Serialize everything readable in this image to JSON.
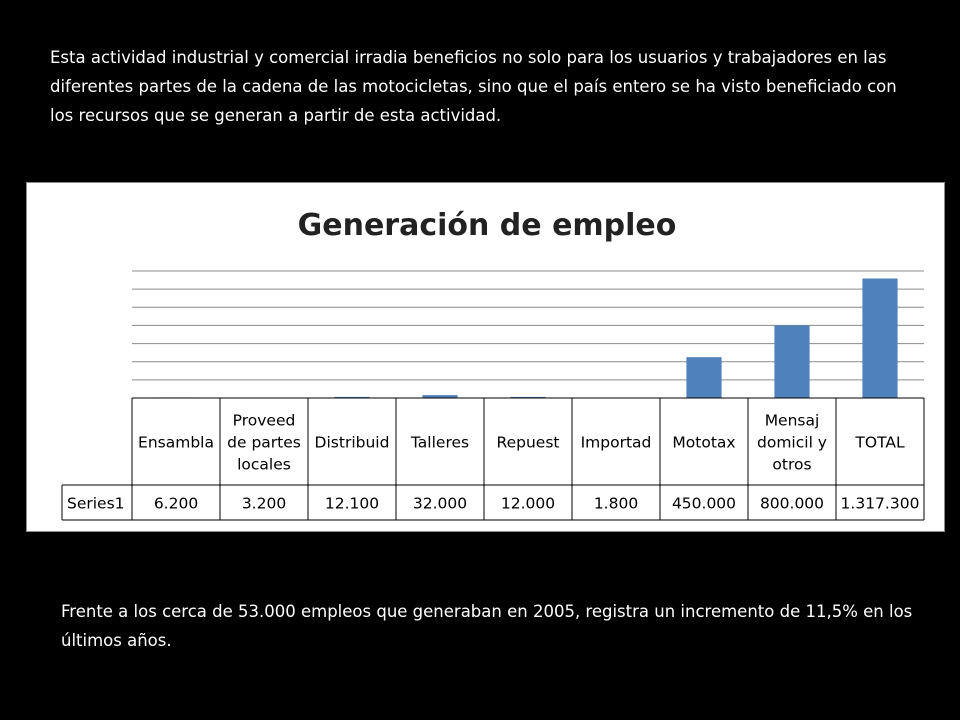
{
  "intro_text": "Esta actividad industrial y comercial irradia beneficios no solo para los usuarios y trabajadores en las diferentes partes de la cadena de las motocicletas, sino que el país entero se ha visto beneficiado con los recursos que se generan a partir de esta actividad.",
  "outro_text": "Frente a los cerca de 53.000 empleos que generaban en 2005, registra un incremento de 11,5% en los últimos años.",
  "chart_data": {
    "type": "bar",
    "title": "Generación de empleo",
    "categories": [
      "Ensambla",
      "Proveed de partes locales",
      "Distribuid",
      "Talleres",
      "Repuest",
      "Importad",
      "Mototax",
      "Mensaj domicil y otros",
      "TOTAL"
    ],
    "category_lines": [
      [
        "Ensambla"
      ],
      [
        "Proveed",
        "de partes",
        "locales"
      ],
      [
        "Distribuid"
      ],
      [
        "Talleres"
      ],
      [
        "Repuest"
      ],
      [
        "Importad"
      ],
      [
        "Mototax"
      ],
      [
        "Mensaj",
        "domicil y",
        "otros"
      ],
      [
        "TOTAL"
      ]
    ],
    "series": [
      {
        "name": "Series1",
        "values": [
          6200,
          3200,
          12100,
          32000,
          12000,
          1800,
          450000,
          800000,
          1317300
        ],
        "labels": [
          "6.200",
          "3.200",
          "12.100",
          "32.000",
          "12.000",
          "1.800",
          "450.000",
          "800.000",
          "1.317.300"
        ],
        "color": "#4f81bd"
      }
    ],
    "ylim": [
      0,
      1400000
    ],
    "grid": true,
    "legend": "data-table",
    "xlabel": "",
    "ylabel": ""
  }
}
